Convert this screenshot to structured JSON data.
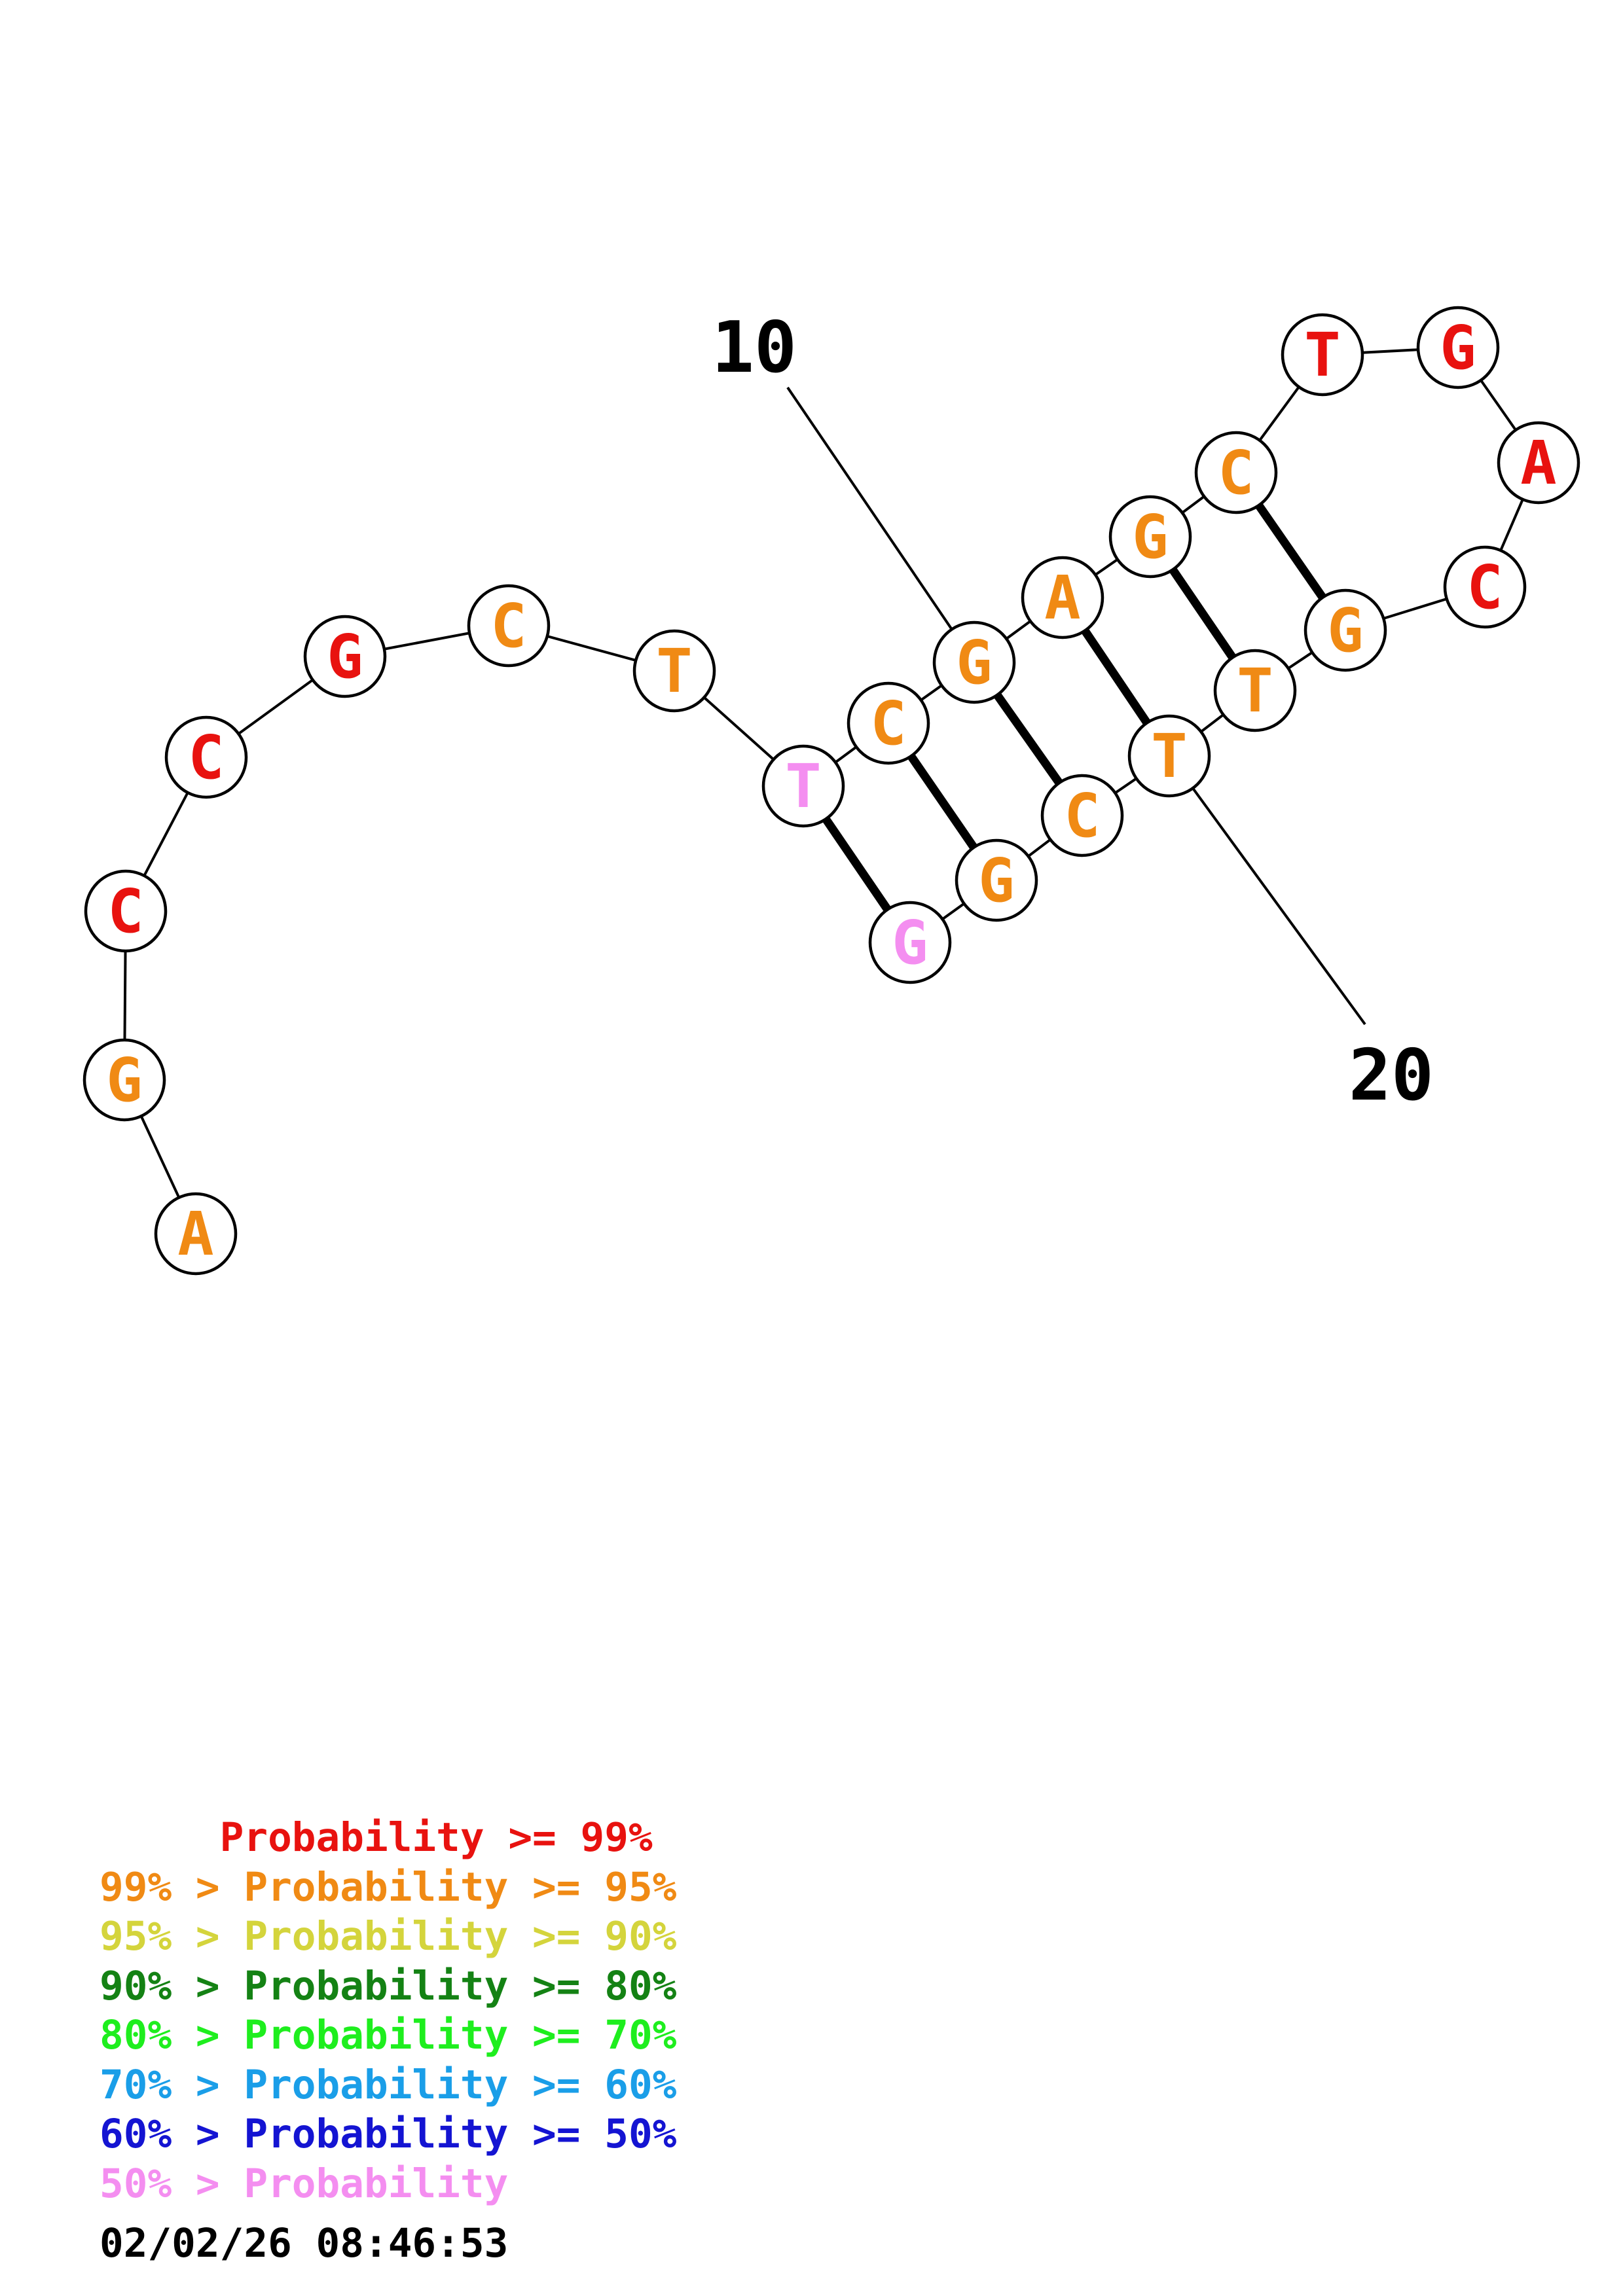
{
  "diagram": {
    "sequence": [
      "A",
      "G",
      "C",
      "C",
      "G",
      "C",
      "T",
      "T",
      "C",
      "G",
      "A",
      "G",
      "C",
      "T",
      "G",
      "A",
      "C",
      "G",
      "T",
      "T",
      "C",
      "G",
      "G"
    ],
    "probability_class": [
      2,
      2,
      1,
      1,
      1,
      2,
      2,
      8,
      2,
      2,
      2,
      2,
      2,
      1,
      1,
      1,
      1,
      2,
      2,
      2,
      2,
      2,
      8
    ],
    "base_pairs": [
      [
        8,
        23
      ],
      [
        9,
        22
      ],
      [
        10,
        21
      ],
      [
        11,
        20
      ],
      [
        12,
        19
      ],
      [
        13,
        18
      ]
    ],
    "position_labels": [
      {
        "index": 10,
        "text": "10"
      },
      {
        "index": 20,
        "text": "20"
      }
    ],
    "colors": {
      "1": "#e8120f",
      "2": "#f08a14",
      "3": "#d4d43c",
      "4": "#148214",
      "5": "#1eee1e",
      "6": "#1a9ee8",
      "7": "#1414d2",
      "8": "#f48ef0"
    }
  },
  "legend": [
    {
      "text": "     Probability >= 99%",
      "color": "#e8120f"
    },
    {
      "text": "99% > Probability >= 95%",
      "color": "#f08a14"
    },
    {
      "text": "95% > Probability >= 90%",
      "color": "#d4d43c"
    },
    {
      "text": "90% > Probability >= 80%",
      "color": "#148214"
    },
    {
      "text": "80% > Probability >= 70%",
      "color": "#1eee1e"
    },
    {
      "text": "70% > Probability >= 60%",
      "color": "#1a9ee8"
    },
    {
      "text": "60% > Probability >= 50%",
      "color": "#1414d2"
    },
    {
      "text": "50% > Probability",
      "color": "#f48ef0"
    }
  ],
  "timestamp": "02/02/26 08:46:53"
}
